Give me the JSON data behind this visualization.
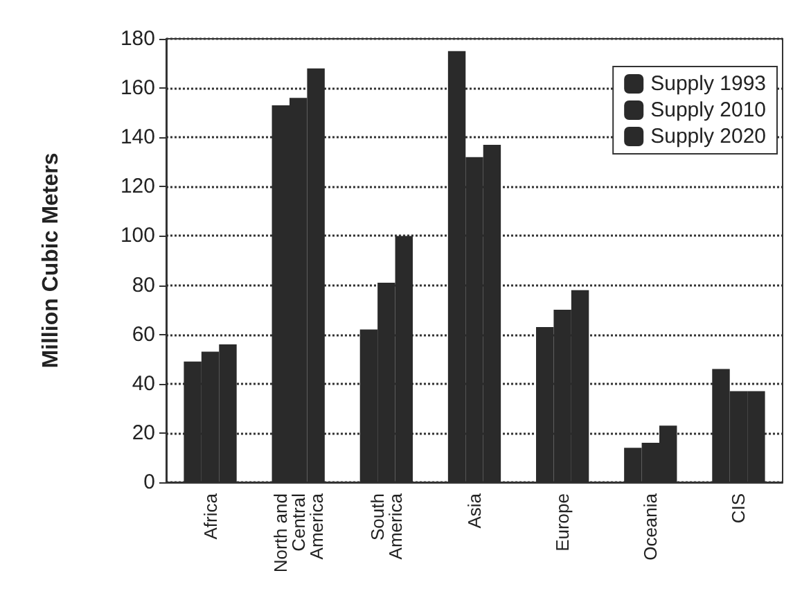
{
  "chart_data": {
    "type": "bar",
    "ylabel": "Million Cubic Meters",
    "categories": [
      "Africa",
      "North and\nCentral\nAmerica",
      "South\nAmerica",
      "Asia",
      "Europe",
      "Oceania",
      "CIS"
    ],
    "series": [
      {
        "name": "Supply 1993",
        "color": "#2a2a2a",
        "values": [
          49,
          153,
          62,
          175,
          63,
          14,
          46
        ]
      },
      {
        "name": "Supply 2010",
        "color": "#2a2a2a",
        "values": [
          53,
          156,
          81,
          132,
          70,
          16,
          37
        ]
      },
      {
        "name": "Supply 2020",
        "color": "#2a2a2a",
        "values": [
          56,
          168,
          100,
          137,
          78,
          23,
          37
        ]
      }
    ],
    "ylim": [
      0,
      180
    ],
    "yticks": [
      0,
      20,
      40,
      60,
      80,
      100,
      120,
      140,
      160,
      180
    ],
    "grid": "y",
    "legend": "top right"
  }
}
